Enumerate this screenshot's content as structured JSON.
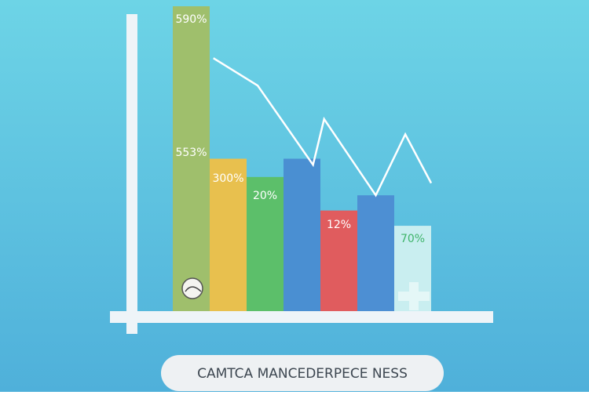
{
  "chart_data": {
    "type": "bar",
    "title": "CAMTCA MANCEDERPECE NESS",
    "categories": [
      null,
      null,
      null,
      null,
      null,
      null,
      null
    ],
    "values": [
      100,
      50,
      44,
      50,
      33,
      38,
      28
    ],
    "colors": [
      "#9fbf6c",
      "#e8c04e",
      "#5cbf6a",
      "#4a8fd2",
      "#e05c5e",
      "#4d8fd3",
      "#c9eef0"
    ],
    "ylim": [
      0,
      100
    ],
    "annotations": [
      {
        "text": "590%"
      },
      {
        "text": "553%"
      },
      {
        "text": "300%"
      },
      {
        "text": "20%"
      },
      {
        "text": "12%"
      },
      {
        "text": "70%"
      }
    ],
    "line": {
      "x": [
        1.1,
        2.3,
        3.8,
        4.1,
        5.5,
        6.3,
        7.0
      ],
      "values": [
        83,
        74,
        48,
        63,
        38,
        58,
        42
      ],
      "color": "#ffffff",
      "xlim": [
        0,
        7
      ]
    }
  }
}
